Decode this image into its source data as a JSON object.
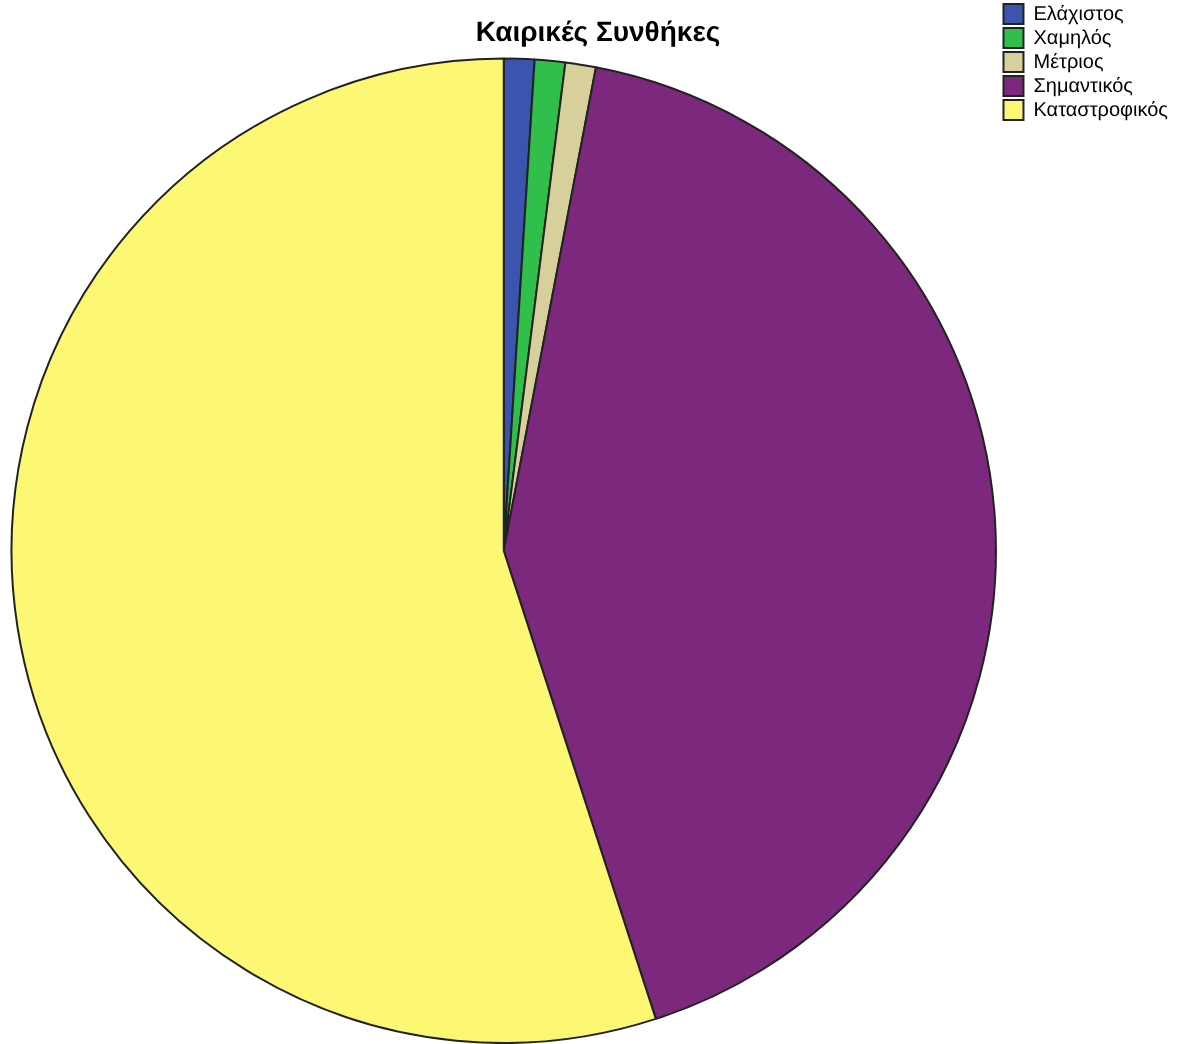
{
  "chart_data": {
    "type": "pie",
    "title": "Καιρικές Συνθήκες",
    "categories": [
      "Ελάχιστος",
      "Χαμηλός",
      "Μέτριος",
      "Σημαντικός",
      "Καταστροφικός"
    ],
    "values": [
      1,
      1,
      1,
      42,
      55
    ],
    "colors": [
      "#3b54ae",
      "#2fbf4a",
      "#d8d09c",
      "#7c287c",
      "#fcf874"
    ],
    "legend": "top right"
  }
}
